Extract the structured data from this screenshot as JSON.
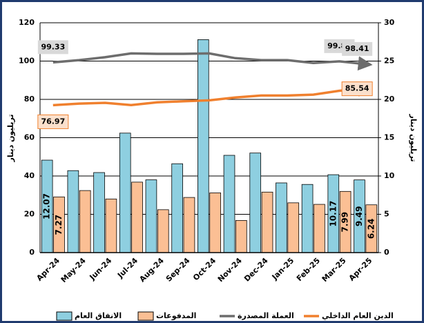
{
  "chart_data": {
    "type": "bar-line",
    "y_label": "تريليون دينار",
    "y2_label": "تريليون دينار",
    "categories": [
      "Apr-24",
      "May-24",
      "Jun-24",
      "Jul-24",
      "Aug-24",
      "Sep-24",
      "Oct-24",
      "Nov-24",
      "Dec-24",
      "Jan-25",
      "Feb-25",
      "Mar-25",
      "Apr-25"
    ],
    "ylim": [
      0,
      120
    ],
    "yticks": [
      0,
      20,
      40,
      60,
      80,
      100,
      120
    ],
    "y2lim": [
      0,
      30
    ],
    "y2ticks": [
      0,
      5,
      10,
      15,
      20,
      25,
      30
    ],
    "grid": true,
    "series": [
      {
        "name": "الانفاق العام",
        "kind": "bar",
        "axis": "y2",
        "color": "#8ecfe0",
        "values": [
          12.07,
          10.7,
          10.45,
          15.6,
          9.5,
          11.6,
          27.8,
          12.7,
          13.0,
          9.1,
          8.9,
          10.17,
          9.49
        ],
        "value_labels": [
          "12.07",
          null,
          null,
          null,
          null,
          null,
          null,
          null,
          null,
          null,
          null,
          "10.17",
          "9.49"
        ]
      },
      {
        "name": "المدفوعات",
        "kind": "bar",
        "axis": "y2",
        "color": "#fbbf94",
        "values": [
          7.27,
          8.1,
          7.0,
          9.2,
          5.6,
          7.2,
          7.8,
          4.2,
          7.9,
          6.5,
          6.3,
          7.99,
          6.24
        ],
        "value_labels": [
          "7.27",
          null,
          null,
          null,
          null,
          null,
          null,
          null,
          null,
          null,
          null,
          "7.99",
          "6.24"
        ]
      },
      {
        "name": "العملة المصدرة",
        "kind": "line",
        "color": "#6d6d6d",
        "values": [
          99.33,
          100.5,
          102,
          104,
          103.8,
          103.8,
          104,
          101.5,
          100.5,
          100.5,
          99,
          99.87,
          98.41
        ],
        "value_labels": [
          "99.33",
          null,
          null,
          null,
          null,
          null,
          null,
          null,
          null,
          null,
          null,
          "99.87",
          "98.41"
        ]
      },
      {
        "name": "الدين العام الداخلي",
        "kind": "line",
        "color": "#f0802e",
        "values": [
          76.97,
          77.8,
          78.2,
          77,
          78.5,
          79,
          79.5,
          81,
          82,
          82,
          82.5,
          84.5,
          85.54
        ],
        "value_labels": [
          "76.97",
          null,
          null,
          null,
          null,
          null,
          null,
          null,
          null,
          null,
          null,
          null,
          "85.54"
        ]
      }
    ]
  }
}
